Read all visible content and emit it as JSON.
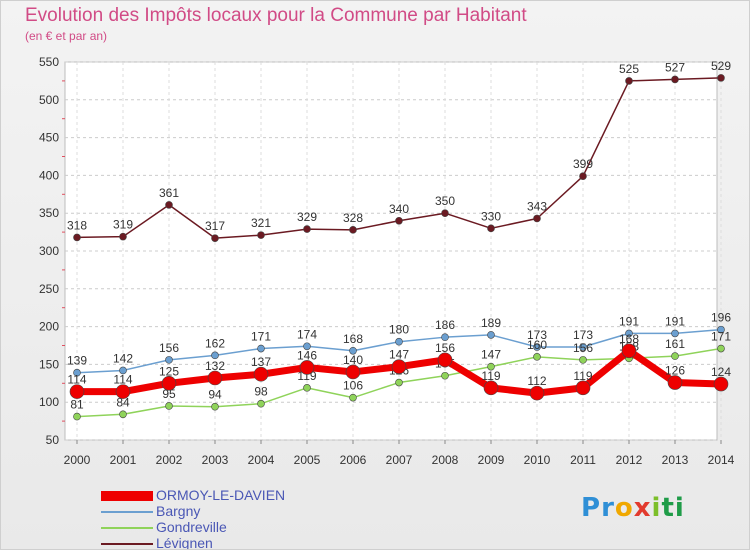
{
  "title": "Evolution des Impôts locaux pour la Commune par Habitant",
  "subtitle": "(en € et par an)",
  "brand": [
    "P",
    "r",
    "o",
    "x",
    "i",
    "ti"
  ],
  "chart_data": {
    "type": "line",
    "title": "Evolution des Impôts locaux pour la Commune par Habitant",
    "ylabel": "(en € et par an)",
    "xlabel": "",
    "x": [
      "2000",
      "2001",
      "2002",
      "2003",
      "2004",
      "2005",
      "2006",
      "2007",
      "2008",
      "2009",
      "2010",
      "2011",
      "2012",
      "2013",
      "2014"
    ],
    "ylim": [
      50,
      550
    ],
    "yticks": [
      50,
      100,
      150,
      200,
      250,
      300,
      350,
      400,
      450,
      500,
      550
    ],
    "grid": true,
    "series": [
      {
        "name": "Lévignen",
        "color": "#6b1a22",
        "values": [
          318,
          319,
          361,
          317,
          321,
          329,
          328,
          340,
          350,
          330,
          343,
          399,
          525,
          527,
          529
        ]
      },
      {
        "name": "Bargny",
        "color": "#6b9fd0",
        "values": [
          139,
          142,
          156,
          162,
          171,
          174,
          168,
          180,
          186,
          189,
          173,
          173,
          191,
          191,
          196
        ]
      },
      {
        "name": "Gondreville",
        "color": "#8fd35a",
        "values": [
          81,
          84,
          95,
          94,
          98,
          119,
          106,
          126,
          135,
          147,
          160,
          156,
          158,
          161,
          171
        ]
      },
      {
        "name": "ORMOY-LE-DAVIEN",
        "color": "#ee0000",
        "values": [
          114,
          114,
          125,
          132,
          137,
          146,
          140,
          147,
          156,
          119,
          112,
          119,
          168,
          126,
          124
        ]
      }
    ],
    "legend_order": [
      "ORMOY-LE-DAVIEN",
      "Bargny",
      "Gondreville",
      "Lévignen"
    ]
  }
}
